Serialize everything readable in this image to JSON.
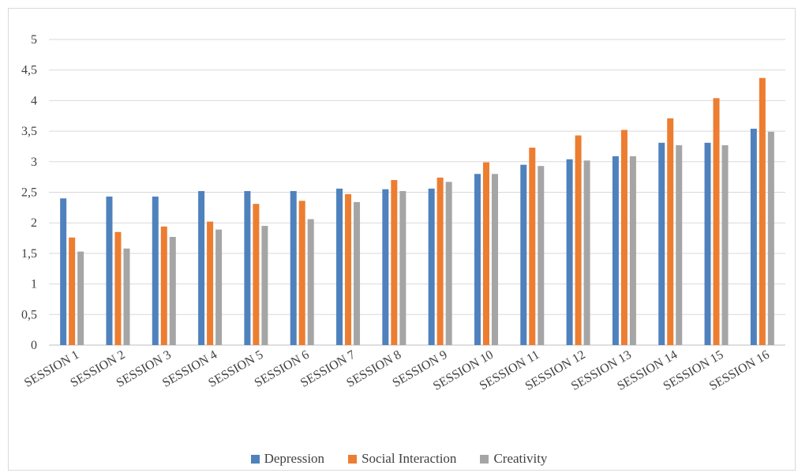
{
  "chart_data": {
    "type": "bar",
    "title": "",
    "xlabel": "",
    "ylabel": "",
    "ylim": [
      0,
      5
    ],
    "yticks": [
      "0",
      "0,5",
      "1",
      "1,5",
      "2",
      "2,5",
      "3",
      "3,5",
      "4",
      "4,5",
      "5"
    ],
    "grid": true,
    "legend_position": "bottom",
    "categories": [
      "SESSION 1",
      "SESSION 2",
      "SESSION 3",
      "SESSION 4",
      "SESSION 5",
      "SESSION 6",
      "SESSION 7",
      "SESSION 8",
      "SESSION 9",
      "SESSION 10",
      "SESSION 11",
      "SESSION 12",
      "SESSION 13",
      "SESSION 14",
      "SESSION 15",
      "SESSION 16"
    ],
    "series": [
      {
        "name": "Depression",
        "color": "#4f81bd",
        "values": [
          2.4,
          2.43,
          2.43,
          2.52,
          2.52,
          2.52,
          2.56,
          2.55,
          2.56,
          2.8,
          2.95,
          3.04,
          3.09,
          3.31,
          3.31,
          3.54
        ]
      },
      {
        "name": "Social Interaction",
        "color": "#ed7d31",
        "values": [
          1.76,
          1.85,
          1.94,
          2.02,
          2.31,
          2.36,
          2.47,
          2.7,
          2.74,
          2.99,
          3.23,
          3.43,
          3.52,
          3.71,
          4.04,
          4.37
        ]
      },
      {
        "name": "Creativity",
        "color": "#a5a5a5",
        "values": [
          1.53,
          1.58,
          1.77,
          1.89,
          1.95,
          2.06,
          2.34,
          2.52,
          2.67,
          2.8,
          2.93,
          3.02,
          3.09,
          3.27,
          3.27,
          3.49
        ]
      }
    ]
  }
}
